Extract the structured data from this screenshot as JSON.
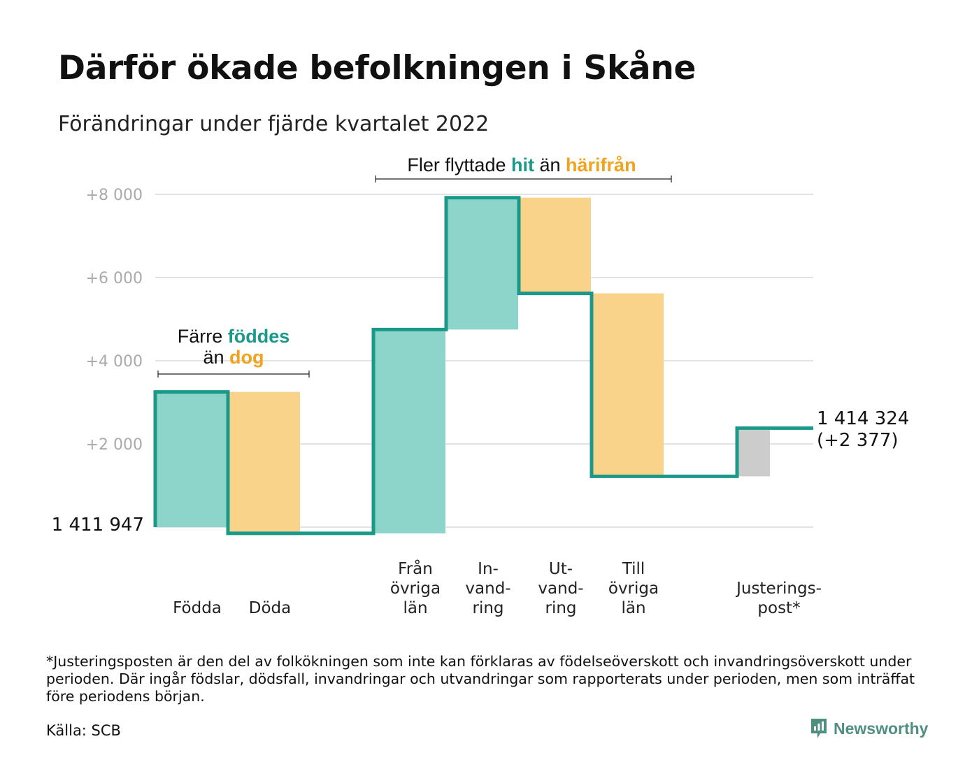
{
  "title": "Därför ökade befolkningen i Skåne",
  "subtitle": "Förändringar under fjärde kvartalet 2022",
  "colors": {
    "positive_fill": "#8dd5cb",
    "negative_fill": "#fad38b",
    "adjustment_fill": "#cccccc",
    "step_line": "#1a9988",
    "highlight_green": "#1a9988",
    "highlight_orange": "#f2a31e",
    "grid": "#e3e3e3",
    "brand": "#4f8f80"
  },
  "annotations": {
    "births": {
      "part1": "Färre ",
      "part2": "föddes",
      "part3": "än ",
      "part4": "dog"
    },
    "migration": {
      "part1": "Fler flyttade ",
      "part2": "hit",
      "part3": " än ",
      "part4": "härifrån"
    }
  },
  "chart_data": {
    "type": "waterfall",
    "title": "Därför ökade befolkningen i Skåne",
    "subtitle": "Förändringar under fjärde kvartalet 2022",
    "start_label": "1 411 947",
    "end_label": "1 414 324",
    "end_change_label": "(+2 377)",
    "start_value": 1411947,
    "end_value": 1414324,
    "yticks": [
      {
        "value": 2000,
        "label": "+2 000"
      },
      {
        "value": 4000,
        "label": "+4 000"
      },
      {
        "value": 6000,
        "label": "+6 000"
      },
      {
        "value": 8000,
        "label": "+8 000"
      }
    ],
    "ylim": [
      -350,
      8200
    ],
    "grid": true,
    "steps": [
      {
        "name": "Födda",
        "label_lines": [
          "Födda"
        ],
        "delta": 3250,
        "kind": "positive"
      },
      {
        "name": "Döda",
        "label_lines": [
          "Döda"
        ],
        "delta": -3400,
        "kind": "negative"
      },
      {
        "name": "gap",
        "label_lines": [],
        "delta": 0,
        "kind": "gap"
      },
      {
        "name": "Från övriga län",
        "label_lines": [
          "Från",
          "övriga",
          "län"
        ],
        "delta": 4900,
        "kind": "positive"
      },
      {
        "name": "Invandring",
        "label_lines": [
          "In-",
          "vand-",
          "ring"
        ],
        "delta": 3170,
        "kind": "positive"
      },
      {
        "name": "Utvandring",
        "label_lines": [
          "Ut-",
          "vand-",
          "ring"
        ],
        "delta": -2300,
        "kind": "negative"
      },
      {
        "name": "Till övriga län",
        "label_lines": [
          "Till",
          "övriga",
          "län"
        ],
        "delta": -4400,
        "kind": "negative"
      },
      {
        "name": "gap",
        "label_lines": [],
        "delta": 0,
        "kind": "gap"
      },
      {
        "name": "Justeringspost*",
        "label_lines": [
          "Justerings-",
          "post*"
        ],
        "delta": 1160,
        "kind": "adjustment"
      }
    ]
  },
  "footnote": "*Justeringsposten är den del av folkökningen som inte kan förklaras av födelseöverskott och invandringsöverskott under perioden. Där ingår födslar, dödsfall, invandringar och utvandringar som rapporterats under perioden, men som inträffat före periodens början.",
  "source": "Källa: SCB",
  "brand": "Newsworthy"
}
